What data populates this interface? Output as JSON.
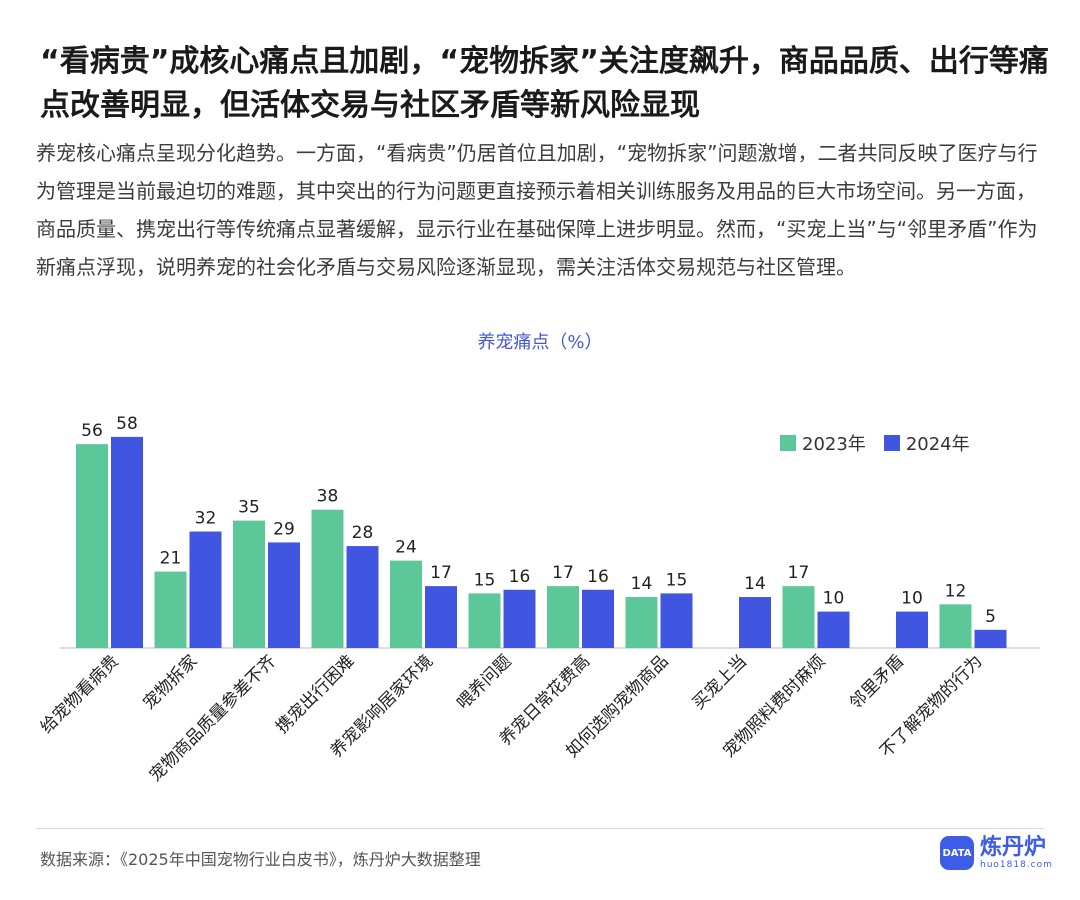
{
  "header": {
    "title": "“看病贵”成核心痛点且加剧，“宠物拆家”关注度飙升，商品品质、出行等痛点改善明显，但活体交易与社区矛盾等新风险显现",
    "subtitle": "养宠核心痛点呈现分化趋势。一方面，“看病贵”仍居首位且加剧，“宠物拆家”问题激增，二者共同反映了医疗与行为管理是当前最迫切的难题，其中突出的行为问题更直接预示着相关训练服务及用品的巨大市场空间。另一方面，商品质量、携宠出行等传统痛点显著缓解，显示行业在基础保障上进步明显。然而，“买宠上当”与“邻里矛盾”作为新痛点浮现，说明养宠的社会化矛盾与交易风险逐渐显现，需关注活体交易规范与社区管理。"
  },
  "chart_data": {
    "type": "bar",
    "title": "养宠痛点（%）",
    "categories": [
      "给宠物看病贵",
      "宠物拆家",
      "宠物商品质量参差不齐",
      "携宠出行困难",
      "养宠影响居家环境",
      "喂养问题",
      "养宠日常花费高",
      "如何选购宠物商品",
      "买宠上当",
      "宠物照料费时麻烦",
      "邻里矛盾",
      "不了解宠物的行为"
    ],
    "series": [
      {
        "name": "2023年",
        "values": [
          56,
          21,
          35,
          38,
          24,
          15,
          17,
          14,
          null,
          17,
          null,
          12
        ]
      },
      {
        "name": "2024年",
        "values": [
          58,
          32,
          29,
          28,
          17,
          16,
          16,
          15,
          14,
          10,
          10,
          5
        ]
      }
    ],
    "ylim": [
      0,
      60
    ],
    "legend": "top-right",
    "grid": false
  },
  "colors": {
    "series_2023": "#5cc89a",
    "series_2024": "#4156e0",
    "title_accent": "#4457d8"
  },
  "footer": {
    "source": "数据来源：《2025年中国宠物行业白皮书》，炼丹炉大数据整理",
    "logo_name": "炼丹炉",
    "logo_badge": "DATA",
    "logo_url": "huo1818.com"
  }
}
